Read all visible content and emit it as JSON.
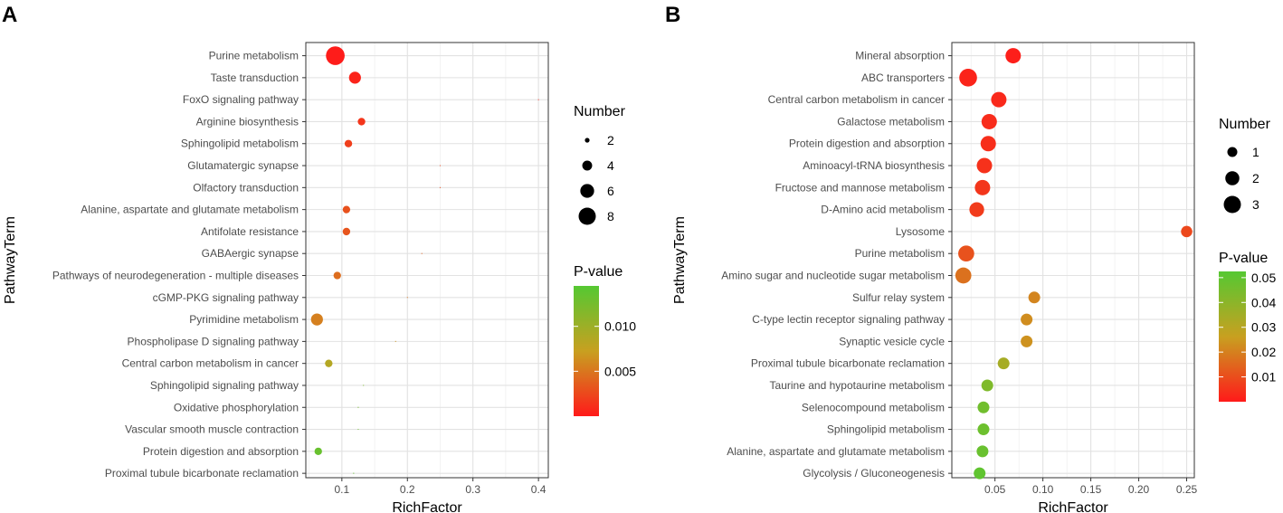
{
  "chart_data": [
    {
      "panel": "A",
      "type": "scatter",
      "xlabel": "RichFactor",
      "ylabel": "PathwayTerm",
      "xlim": [
        0.045,
        0.415
      ],
      "xticks": [
        0.1,
        0.2,
        0.3,
        0.4
      ],
      "xtick_labels": [
        "0.1",
        "0.2",
        "0.3",
        "0.4"
      ],
      "grid": true,
      "size_legend": {
        "title": "Number",
        "values": [
          2,
          4,
          6,
          8
        ]
      },
      "color_legend": {
        "title": "P-value",
        "min": 0.0,
        "max": 0.0145,
        "ticks": [
          0.005,
          0.01
        ],
        "tick_labels": [
          "0.005",
          "0.010"
        ],
        "low_color": "#ff1a1a",
        "mid_color": "#c8a020",
        "high_color": "#55c832"
      },
      "points": [
        {
          "term": "Purine metabolism",
          "rich": 0.09,
          "number": 9,
          "p": 0.0001
        },
        {
          "term": "Taste transduction",
          "rich": 0.12,
          "number": 5,
          "p": 0.0005
        },
        {
          "term": "FoxO signaling pathway",
          "rich": 0.4,
          "number": 1,
          "p": 0.0008
        },
        {
          "term": "Arginine biosynthesis",
          "rich": 0.13,
          "number": 3,
          "p": 0.0015
        },
        {
          "term": "Sphingolipid metabolism",
          "rich": 0.11,
          "number": 3,
          "p": 0.002
        },
        {
          "term": "Glutamatergic synapse",
          "rich": 0.25,
          "number": 1,
          "p": 0.0025
        },
        {
          "term": "Olfactory transduction",
          "rich": 0.25,
          "number": 1,
          "p": 0.0028
        },
        {
          "term": "Alanine, aspartate and glutamate metabolism",
          "rich": 0.107,
          "number": 3,
          "p": 0.003
        },
        {
          "term": "Antifolate resistance",
          "rich": 0.107,
          "number": 3,
          "p": 0.0032
        },
        {
          "term": "GABAergic synapse",
          "rich": 0.222,
          "number": 1,
          "p": 0.0038
        },
        {
          "term": "Pathways of neurodegeneration - multiple diseases",
          "rich": 0.093,
          "number": 3,
          "p": 0.0045
        },
        {
          "term": "cGMP-PKG signaling pathway",
          "rich": 0.2,
          "number": 1,
          "p": 0.005
        },
        {
          "term": "Pyrimidine metabolism",
          "rich": 0.062,
          "number": 5,
          "p": 0.0055
        },
        {
          "term": "Phospholipase D signaling pathway",
          "rich": 0.182,
          "number": 1,
          "p": 0.0065
        },
        {
          "term": "Central carbon metabolism in cancer",
          "rich": 0.08,
          "number": 3,
          "p": 0.0085
        },
        {
          "term": "Sphingolipid signaling pathway",
          "rich": 0.133,
          "number": 1,
          "p": 0.012
        },
        {
          "term": "Oxidative phosphorylation",
          "rich": 0.125,
          "number": 1,
          "p": 0.0125
        },
        {
          "term": "Vascular smooth muscle contraction",
          "rich": 0.125,
          "number": 1,
          "p": 0.013
        },
        {
          "term": "Protein digestion and absorption",
          "rich": 0.064,
          "number": 3,
          "p": 0.0133
        },
        {
          "term": "Proximal tubule bicarbonate reclamation",
          "rich": 0.118,
          "number": 1,
          "p": 0.0135
        }
      ]
    },
    {
      "panel": "B",
      "type": "scatter",
      "xlabel": "RichFactor",
      "ylabel": "PathwayTerm",
      "xlim": [
        0.005,
        0.258
      ],
      "xticks": [
        0.05,
        0.1,
        0.15,
        0.2,
        0.25
      ],
      "xtick_labels": [
        "0.05",
        "0.10",
        "0.15",
        "0.20",
        "0.25"
      ],
      "grid": true,
      "size_legend": {
        "title": "Number",
        "values": [
          1,
          2,
          3
        ]
      },
      "color_legend": {
        "title": "P-value",
        "min": 0.0,
        "max": 0.0525,
        "ticks": [
          0.01,
          0.02,
          0.03,
          0.04,
          0.05
        ],
        "tick_labels": [
          "0.01",
          "0.02",
          "0.03",
          "0.04",
          "0.05"
        ],
        "low_color": "#ff1a1a",
        "mid_color": "#c8a020",
        "high_color": "#55c832"
      },
      "points": [
        {
          "term": "Mineral absorption",
          "rich": 0.069,
          "number": 2.4,
          "p": 0.001
        },
        {
          "term": "ABC transporters",
          "rich": 0.022,
          "number": 3.2,
          "p": 0.002
        },
        {
          "term": "Central carbon metabolism in cancer",
          "rich": 0.054,
          "number": 2.4,
          "p": 0.003
        },
        {
          "term": "Galactose metabolism",
          "rich": 0.044,
          "number": 2.4,
          "p": 0.0035
        },
        {
          "term": "Protein digestion and absorption",
          "rich": 0.043,
          "number": 2.4,
          "p": 0.004
        },
        {
          "term": "Aminoacyl-tRNA biosynthesis",
          "rich": 0.039,
          "number": 2.4,
          "p": 0.0045
        },
        {
          "term": "Fructose and mannose metabolism",
          "rich": 0.037,
          "number": 2.4,
          "p": 0.0055
        },
        {
          "term": "D-Amino acid metabolism",
          "rich": 0.031,
          "number": 2.2,
          "p": 0.0065
        },
        {
          "term": "Lysosome",
          "rich": 0.25,
          "number": 1.3,
          "p": 0.009
        },
        {
          "term": "Purine metabolism",
          "rich": 0.02,
          "number": 2.6,
          "p": 0.011
        },
        {
          "term": "Amino sugar and nucleotide sugar metabolism",
          "rich": 0.017,
          "number": 2.6,
          "p": 0.017
        },
        {
          "term": "Sulfur relay system",
          "rich": 0.091,
          "number": 1.4,
          "p": 0.021
        },
        {
          "term": "C-type lectin receptor signaling pathway",
          "rich": 0.083,
          "number": 1.4,
          "p": 0.0225
        },
        {
          "term": "Synaptic vesicle cycle",
          "rich": 0.083,
          "number": 1.4,
          "p": 0.0235
        },
        {
          "term": "Proximal tubule bicarbonate reclamation",
          "rich": 0.059,
          "number": 1.4,
          "p": 0.034
        },
        {
          "term": "Taurine and hypotaurine metabolism",
          "rich": 0.042,
          "number": 1.4,
          "p": 0.043
        },
        {
          "term": "Selenocompound metabolism",
          "rich": 0.038,
          "number": 1.4,
          "p": 0.046
        },
        {
          "term": "Sphingolipid metabolism",
          "rich": 0.038,
          "number": 1.4,
          "p": 0.047
        },
        {
          "term": "Alanine, aspartate and glutamate metabolism",
          "rich": 0.037,
          "number": 1.4,
          "p": 0.048
        },
        {
          "term": "Glycolysis / Gluconeogenesis",
          "rich": 0.034,
          "number": 1.4,
          "p": 0.05
        }
      ]
    }
  ]
}
